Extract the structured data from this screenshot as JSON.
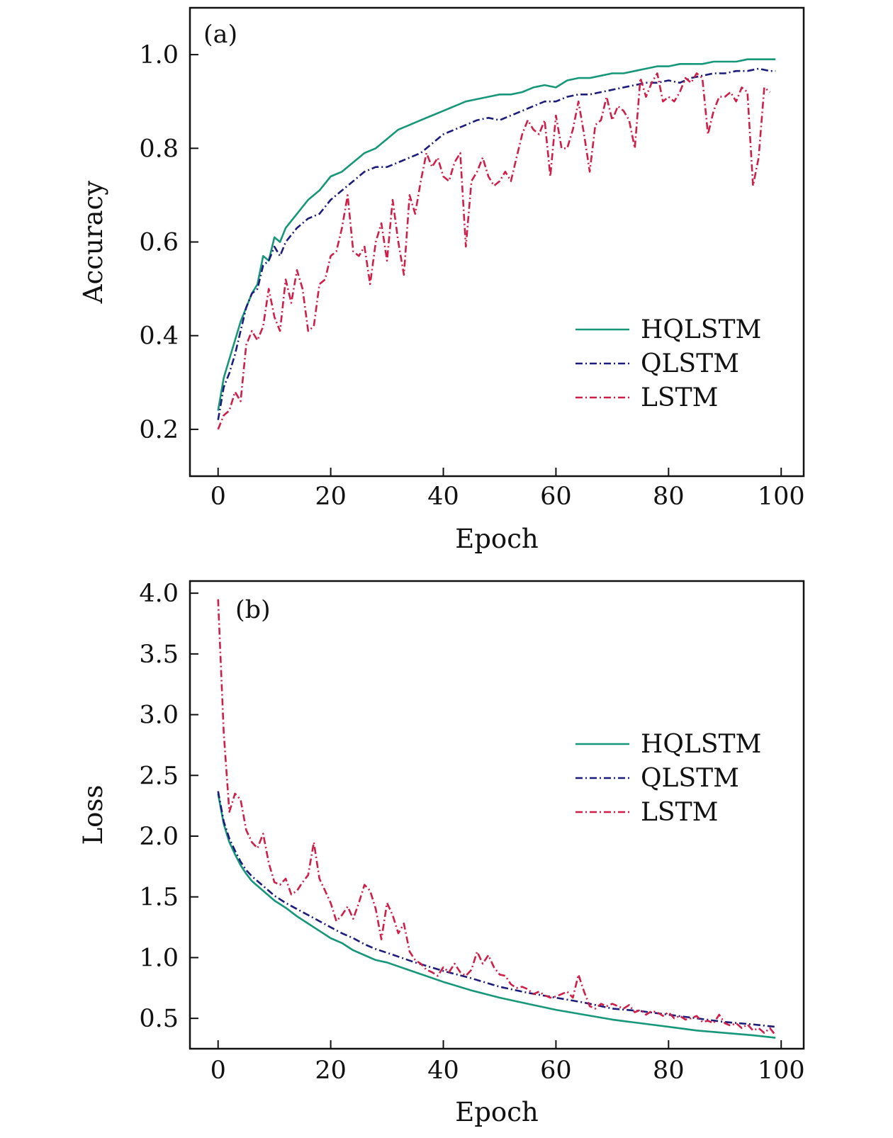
{
  "chart_data": [
    {
      "panel": "(a)",
      "type": "line",
      "xlabel": "Epoch",
      "ylabel": "Accuracy",
      "xlim": [
        -5,
        104
      ],
      "ylim": [
        0.1,
        1.1
      ],
      "xticks": [
        0,
        20,
        40,
        60,
        80,
        100
      ],
      "yticks": [
        0.2,
        0.4,
        0.6,
        0.8,
        1.0
      ],
      "ytick_labels": [
        "0.2",
        "0.4",
        "0.6",
        "0.8",
        "1.0"
      ],
      "legend_position": "lower-right",
      "series": [
        {
          "name": "HQLSTM",
          "color": "#16977a",
          "style": "solid",
          "x": [
            0,
            1,
            2,
            3,
            4,
            5,
            6,
            7,
            8,
            9,
            10,
            11,
            12,
            14,
            16,
            18,
            20,
            22,
            24,
            26,
            28,
            30,
            32,
            34,
            36,
            38,
            40,
            42,
            44,
            46,
            48,
            50,
            52,
            54,
            56,
            58,
            60,
            62,
            64,
            66,
            68,
            70,
            72,
            74,
            76,
            78,
            80,
            82,
            84,
            86,
            88,
            90,
            92,
            94,
            96,
            98,
            99
          ],
          "y": [
            0.24,
            0.31,
            0.35,
            0.39,
            0.43,
            0.46,
            0.49,
            0.51,
            0.57,
            0.56,
            0.61,
            0.6,
            0.63,
            0.66,
            0.69,
            0.71,
            0.74,
            0.75,
            0.77,
            0.79,
            0.8,
            0.82,
            0.84,
            0.85,
            0.86,
            0.87,
            0.88,
            0.89,
            0.9,
            0.905,
            0.91,
            0.915,
            0.915,
            0.92,
            0.93,
            0.935,
            0.93,
            0.945,
            0.95,
            0.95,
            0.955,
            0.96,
            0.96,
            0.965,
            0.97,
            0.975,
            0.975,
            0.98,
            0.98,
            0.98,
            0.985,
            0.985,
            0.985,
            0.99,
            0.99,
            0.99,
            0.99
          ]
        },
        {
          "name": "QLSTM",
          "color": "#1c1c7a",
          "style": "dashdot",
          "x": [
            0,
            1,
            2,
            3,
            4,
            5,
            6,
            7,
            8,
            9,
            10,
            11,
            12,
            14,
            16,
            18,
            20,
            22,
            24,
            26,
            28,
            30,
            32,
            34,
            36,
            38,
            40,
            42,
            44,
            46,
            48,
            50,
            52,
            54,
            56,
            58,
            60,
            62,
            64,
            66,
            68,
            70,
            72,
            74,
            76,
            78,
            80,
            82,
            84,
            86,
            88,
            90,
            92,
            94,
            96,
            98,
            99
          ],
          "y": [
            0.22,
            0.29,
            0.32,
            0.36,
            0.41,
            0.46,
            0.49,
            0.5,
            0.55,
            0.56,
            0.59,
            0.57,
            0.6,
            0.63,
            0.65,
            0.66,
            0.69,
            0.71,
            0.73,
            0.75,
            0.76,
            0.76,
            0.77,
            0.78,
            0.79,
            0.81,
            0.83,
            0.84,
            0.85,
            0.86,
            0.865,
            0.86,
            0.87,
            0.88,
            0.89,
            0.9,
            0.9,
            0.91,
            0.915,
            0.915,
            0.92,
            0.925,
            0.93,
            0.935,
            0.94,
            0.94,
            0.945,
            0.94,
            0.95,
            0.955,
            0.96,
            0.96,
            0.965,
            0.965,
            0.97,
            0.965,
            0.965
          ]
        },
        {
          "name": "LSTM",
          "color": "#cf1e47",
          "style": "dashdot",
          "x": [
            0,
            1,
            2,
            3,
            4,
            5,
            6,
            7,
            8,
            9,
            10,
            11,
            12,
            13,
            14,
            15,
            16,
            17,
            18,
            19,
            20,
            21,
            22,
            23,
            24,
            25,
            26,
            27,
            28,
            29,
            30,
            31,
            32,
            33,
            34,
            35,
            36,
            37,
            38,
            39,
            40,
            41,
            42,
            43,
            44,
            45,
            46,
            47,
            48,
            49,
            50,
            51,
            52,
            53,
            54,
            55,
            56,
            57,
            58,
            59,
            60,
            61,
            62,
            63,
            64,
            65,
            66,
            67,
            68,
            69,
            70,
            71,
            72,
            73,
            74,
            75,
            76,
            77,
            78,
            79,
            80,
            81,
            82,
            83,
            84,
            85,
            86,
            87,
            88,
            89,
            90,
            91,
            92,
            93,
            94,
            95,
            96,
            97,
            98
          ],
          "y": [
            0.2,
            0.23,
            0.24,
            0.28,
            0.26,
            0.38,
            0.41,
            0.39,
            0.42,
            0.5,
            0.44,
            0.41,
            0.52,
            0.47,
            0.54,
            0.5,
            0.41,
            0.42,
            0.51,
            0.52,
            0.57,
            0.58,
            0.63,
            0.7,
            0.58,
            0.57,
            0.59,
            0.51,
            0.6,
            0.64,
            0.56,
            0.69,
            0.6,
            0.53,
            0.7,
            0.66,
            0.73,
            0.79,
            0.76,
            0.78,
            0.74,
            0.73,
            0.77,
            0.79,
            0.59,
            0.73,
            0.75,
            0.78,
            0.74,
            0.72,
            0.73,
            0.75,
            0.73,
            0.78,
            0.83,
            0.86,
            0.84,
            0.83,
            0.86,
            0.74,
            0.87,
            0.8,
            0.8,
            0.84,
            0.9,
            0.83,
            0.75,
            0.85,
            0.86,
            0.91,
            0.86,
            0.89,
            0.88,
            0.86,
            0.8,
            0.95,
            0.91,
            0.94,
            0.96,
            0.9,
            0.91,
            0.9,
            0.92,
            0.95,
            0.94,
            0.96,
            0.95,
            0.83,
            0.88,
            0.91,
            0.91,
            0.92,
            0.9,
            0.93,
            0.92,
            0.72,
            0.78,
            0.93,
            0.92
          ]
        }
      ]
    },
    {
      "panel": "(b)",
      "type": "line",
      "xlabel": "Epoch",
      "ylabel": "Loss",
      "xlim": [
        -5,
        104
      ],
      "ylim": [
        0.25,
        4.1
      ],
      "xticks": [
        0,
        20,
        40,
        60,
        80,
        100
      ],
      "yticks": [
        0.5,
        1.0,
        1.5,
        2.0,
        2.5,
        3.0,
        3.5,
        4.0
      ],
      "ytick_labels": [
        "0.5",
        "1.0",
        "1.5",
        "2.0",
        "2.5",
        "3.0",
        "3.5",
        "4.0"
      ],
      "legend_position": "upper-right",
      "series": [
        {
          "name": "HQLSTM",
          "color": "#16977a",
          "style": "solid",
          "x": [
            0,
            1,
            2,
            3,
            4,
            5,
            6,
            8,
            10,
            12,
            14,
            16,
            18,
            20,
            22,
            24,
            26,
            28,
            30,
            35,
            40,
            45,
            50,
            55,
            60,
            65,
            70,
            75,
            80,
            85,
            90,
            95,
            99
          ],
          "y": [
            2.35,
            2.1,
            1.95,
            1.85,
            1.76,
            1.69,
            1.63,
            1.55,
            1.47,
            1.41,
            1.34,
            1.28,
            1.22,
            1.16,
            1.12,
            1.06,
            1.02,
            0.98,
            0.96,
            0.88,
            0.8,
            0.73,
            0.67,
            0.62,
            0.57,
            0.53,
            0.49,
            0.46,
            0.43,
            0.4,
            0.38,
            0.36,
            0.34
          ]
        },
        {
          "name": "QLSTM",
          "color": "#1c1c7a",
          "style": "dashdot",
          "x": [
            0,
            1,
            2,
            3,
            4,
            5,
            6,
            8,
            10,
            12,
            14,
            16,
            18,
            20,
            22,
            24,
            26,
            28,
            30,
            35,
            40,
            45,
            50,
            55,
            60,
            65,
            70,
            75,
            80,
            85,
            90,
            95,
            99
          ],
          "y": [
            2.37,
            2.12,
            1.98,
            1.88,
            1.79,
            1.72,
            1.67,
            1.59,
            1.51,
            1.45,
            1.4,
            1.35,
            1.3,
            1.25,
            1.2,
            1.16,
            1.11,
            1.07,
            1.04,
            0.96,
            0.89,
            0.83,
            0.76,
            0.71,
            0.67,
            0.63,
            0.58,
            0.56,
            0.53,
            0.5,
            0.47,
            0.45,
            0.43
          ]
        },
        {
          "name": "LSTM",
          "color": "#cf1e47",
          "style": "dashdot",
          "x": [
            0,
            1,
            2,
            3,
            4,
            5,
            6,
            7,
            8,
            9,
            10,
            11,
            12,
            13,
            14,
            15,
            16,
            17,
            18,
            19,
            20,
            21,
            22,
            23,
            24,
            25,
            26,
            27,
            28,
            29,
            30,
            31,
            32,
            33,
            34,
            35,
            36,
            37,
            38,
            39,
            40,
            41,
            42,
            43,
            44,
            45,
            46,
            47,
            48,
            49,
            50,
            51,
            52,
            53,
            54,
            55,
            56,
            57,
            58,
            59,
            60,
            61,
            62,
            63,
            64,
            65,
            66,
            67,
            68,
            69,
            70,
            71,
            72,
            73,
            74,
            75,
            76,
            77,
            78,
            79,
            80,
            81,
            82,
            83,
            84,
            85,
            86,
            87,
            88,
            89,
            90,
            91,
            92,
            93,
            94,
            95,
            96,
            97,
            98,
            99
          ],
          "y": [
            3.95,
            2.85,
            2.2,
            2.35,
            2.3,
            2.05,
            1.95,
            1.9,
            2.02,
            1.78,
            1.62,
            1.6,
            1.65,
            1.52,
            1.55,
            1.62,
            1.68,
            1.95,
            1.65,
            1.55,
            1.45,
            1.3,
            1.35,
            1.42,
            1.32,
            1.45,
            1.6,
            1.55,
            1.4,
            1.15,
            1.45,
            1.35,
            1.2,
            1.28,
            1.05,
            0.98,
            0.95,
            0.9,
            0.88,
            0.85,
            0.92,
            0.88,
            0.95,
            0.88,
            0.85,
            0.9,
            1.05,
            0.95,
            1.02,
            0.92,
            0.86,
            0.85,
            0.78,
            0.75,
            0.76,
            0.74,
            0.7,
            0.72,
            0.69,
            0.67,
            0.68,
            0.7,
            0.72,
            0.67,
            0.86,
            0.72,
            0.6,
            0.58,
            0.62,
            0.6,
            0.62,
            0.6,
            0.58,
            0.61,
            0.55,
            0.57,
            0.53,
            0.56,
            0.55,
            0.52,
            0.55,
            0.5,
            0.52,
            0.49,
            0.5,
            0.52,
            0.47,
            0.48,
            0.46,
            0.53,
            0.46,
            0.44,
            0.46,
            0.42,
            0.45,
            0.4,
            0.42,
            0.38,
            0.42,
            0.36
          ]
        }
      ]
    }
  ]
}
